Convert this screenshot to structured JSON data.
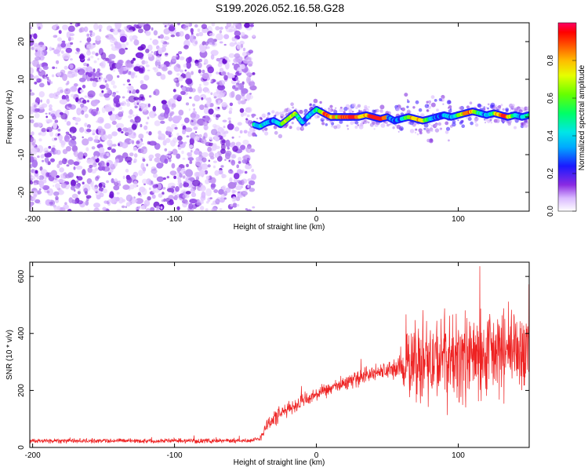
{
  "title": "S199.2026.052.16.58.G28",
  "chart_data": [
    {
      "type": "heatmap",
      "name": "spectrogram",
      "xlabel": "Height of straight line (km)",
      "ylabel": "Frequency (Hz)",
      "xlim": [
        -202,
        150
      ],
      "ylim": [
        -25,
        25
      ],
      "xticks": [
        -200,
        -100,
        0,
        100
      ],
      "yticks": [
        -20,
        -10,
        0,
        10,
        20
      ],
      "xtick_labels": [
        "-200",
        "-100",
        "0",
        "100"
      ],
      "ytick_labels": [
        "-20",
        "-10",
        "0",
        "10",
        "20"
      ],
      "noise_region": [
        -202,
        -44
      ],
      "signal_track": {
        "x": [
          -44,
          -40,
          -35,
          -30,
          -25,
          -20,
          -15,
          -10,
          -5,
          0,
          5,
          10,
          15,
          20,
          25,
          30,
          35,
          40,
          45,
          50,
          55,
          60,
          65,
          70,
          75,
          80,
          85,
          90,
          95,
          100,
          105,
          110,
          115,
          120,
          125,
          130,
          135,
          140,
          145,
          150
        ],
        "y": [
          -2,
          -2.5,
          -1.5,
          -1,
          -2,
          -0.5,
          1,
          -1.5,
          0.5,
          2,
          1,
          0,
          0,
          0,
          0,
          0,
          0.5,
          0,
          -0.5,
          0,
          -1,
          -0.5,
          0,
          -0.5,
          -1,
          -0.5,
          0,
          0.5,
          0,
          0.5,
          1,
          1.5,
          1,
          0.5,
          1,
          0.5,
          0,
          0.5,
          0,
          0.5
        ]
      },
      "colorbar": {
        "label": "Normalized spectral amplitude",
        "range": [
          0,
          1
        ],
        "ticks": [
          0.0,
          0.2,
          0.4,
          0.6,
          0.8
        ],
        "tick_labels": [
          "0.0",
          "0.2",
          "0.4",
          "0.6",
          "0.8"
        ]
      }
    },
    {
      "type": "line",
      "name": "snr",
      "xlabel": "Height of straight line (km)",
      "ylabel": "SNR (10 * v/v)",
      "xlim": [
        -202,
        150
      ],
      "ylim": [
        0,
        650
      ],
      "xticks": [
        -200,
        -100,
        0,
        100
      ],
      "yticks": [
        0,
        200,
        400,
        600
      ],
      "xtick_labels": [
        "-200",
        "-100",
        "0",
        "100"
      ],
      "ytick_labels": [
        "0",
        "200",
        "400",
        "600"
      ],
      "color": "#ee2222",
      "series": [
        {
          "name": "SNR",
          "x": [
            -202,
            -180,
            -160,
            -140,
            -120,
            -100,
            -80,
            -60,
            -45,
            -40,
            -35,
            -30,
            -20,
            -10,
            0,
            10,
            20,
            30,
            40,
            50,
            60,
            65,
            70,
            80,
            90,
            100,
            110,
            120,
            130,
            140,
            150
          ],
          "y": [
            22,
            24,
            23,
            24,
            23,
            24,
            23,
            24,
            24,
            30,
            80,
            100,
            135,
            160,
            185,
            205,
            225,
            245,
            260,
            270,
            280,
            290,
            300,
            305,
            310,
            310,
            315,
            320,
            330,
            340,
            345
          ],
          "spread": [
            10,
            12,
            10,
            10,
            10,
            10,
            10,
            10,
            10,
            15,
            30,
            40,
            30,
            35,
            30,
            30,
            30,
            35,
            35,
            40,
            60,
            160,
            170,
            180,
            200,
            200,
            190,
            200,
            200,
            190,
            170
          ]
        }
      ]
    }
  ]
}
